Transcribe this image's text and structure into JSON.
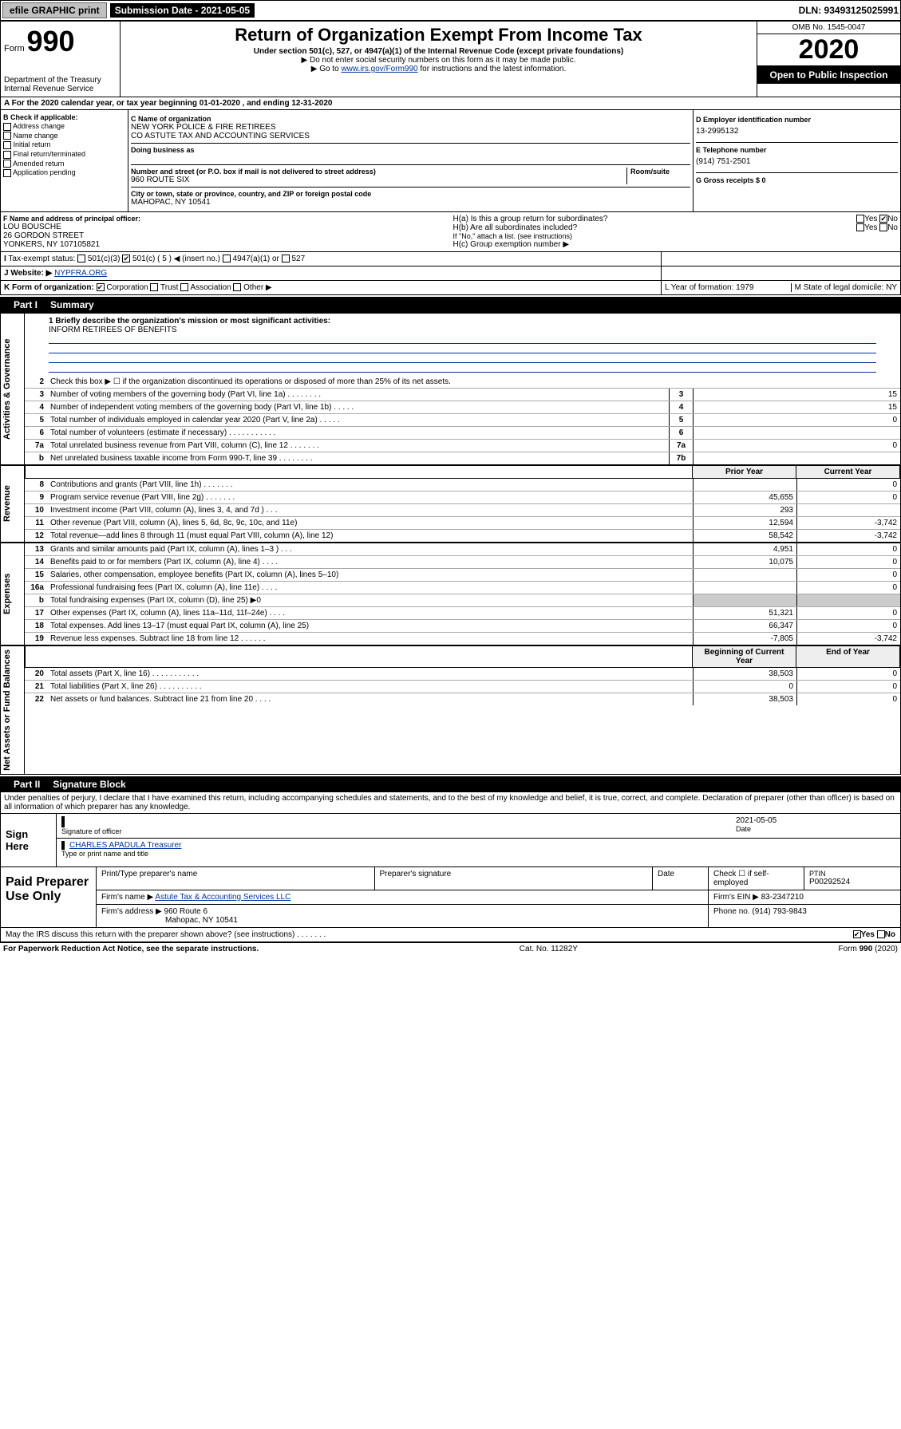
{
  "topbar": {
    "efile": "efile GRAPHIC print",
    "submission_label": "Submission Date - 2021-05-05",
    "dln": "DLN: 93493125025991"
  },
  "header": {
    "form_word": "Form",
    "form_num": "990",
    "dept": "Department of the Treasury\nInternal Revenue Service",
    "title": "Return of Organization Exempt From Income Tax",
    "subtitle": "Under section 501(c), 527, or 4947(a)(1) of the Internal Revenue Code (except private foundations)",
    "hint1": "▶ Do not enter social security numbers on this form as it may be made public.",
    "hint2_pre": "▶ Go to ",
    "hint2_link": "www.irs.gov/Form990",
    "hint2_post": " for instructions and the latest information.",
    "omb": "OMB No. 1545-0047",
    "year": "2020",
    "otp": "Open to Public Inspection"
  },
  "rowA": "For the 2020 calendar year, or tax year beginning 01-01-2020   , and ending 12-31-2020",
  "colB": {
    "title": "B Check if applicable:",
    "opts": [
      "Address change",
      "Name change",
      "Initial return",
      "Final return/terminated",
      "Amended return",
      "Application pending"
    ]
  },
  "colC": {
    "name_lbl": "C Name of organization",
    "name1": "NEW YORK POLICE & FIRE RETIREES",
    "name2": "CO ASTUTE TAX AND ACCOUNTING SERVICES",
    "dba_lbl": "Doing business as",
    "addr_lbl": "Number and street (or P.O. box if mail is not delivered to street address)",
    "suite_lbl": "Room/suite",
    "addr": "960 ROUTE SIX",
    "city_lbl": "City or town, state or province, country, and ZIP or foreign postal code",
    "city": "MAHOPAC, NY  10541"
  },
  "colD": {
    "ein_lbl": "D Employer identification number",
    "ein": "13-2995132",
    "tel_lbl": "E Telephone number",
    "tel": "(914) 751-2501",
    "gross_lbl": "G Gross receipts $ 0"
  },
  "rowF": {
    "lbl": "F  Name and address of principal officer:",
    "l1": "LOU BOUSCHE",
    "l2": "26 GORDON STREET",
    "l3": "YONKERS, NY  107105821"
  },
  "rowH": {
    "ha": "H(a)  Is this a group return for subordinates?",
    "ha_ans": "No",
    "hb": "H(b)  Are all subordinates included?",
    "hb_hint": "If \"No,\" attach a list. (see instructions)",
    "hc": "H(c)  Group exemption number ▶"
  },
  "rowI": {
    "lbl": "Tax-exempt status:",
    "c1": "501(c)(3)",
    "c2_pre": "501(c) ( 5 ) ◀ (insert no.)",
    "c3": "4947(a)(1) or",
    "c4": "527"
  },
  "rowJ": {
    "lbl": "Website: ▶",
    "val": "NYPFRA.ORG"
  },
  "rowK": {
    "lbl": "K Form of organization:",
    "opts": [
      "Corporation",
      "Trust",
      "Association",
      "Other ▶"
    ],
    "L": "L Year of formation: 1979",
    "M": "M State of legal domicile: NY"
  },
  "part1": {
    "tab": "Part I",
    "title": "Summary"
  },
  "mission": {
    "q": "1  Briefly describe the organization's mission or most significant activities:",
    "a": "INFORM RETIREES OF BENEFITS"
  },
  "sidelabels": {
    "gov": "Activities & Governance",
    "rev": "Revenue",
    "exp": "Expenses",
    "net": "Net Assets or Fund Balances"
  },
  "govRows": [
    {
      "n": "2",
      "t": "Check this box ▶ ☐  if the organization discontinued its operations or disposed of more than 25% of its net assets."
    },
    {
      "n": "3",
      "t": "Number of voting members of the governing body (Part VI, line 1a)  .   .   .   .   .   .   .   .",
      "bn": "3",
      "v": "15"
    },
    {
      "n": "4",
      "t": "Number of independent voting members of the governing body (Part VI, line 1b)  .   .   .   .   .",
      "bn": "4",
      "v": "15"
    },
    {
      "n": "5",
      "t": "Total number of individuals employed in calendar year 2020 (Part V, line 2a)   .   .   .   .   .",
      "bn": "5",
      "v": "0"
    },
    {
      "n": "6",
      "t": "Total number of volunteers (estimate if necessary)  .   .   .   .   .   .   .   .   .   .   .",
      "bn": "6",
      "v": ""
    },
    {
      "n": "7a",
      "t": "Total unrelated business revenue from Part VIII, column (C), line 12   .   .   .   .   .   .   .",
      "bn": "7a",
      "v": "0"
    },
    {
      "n": "b",
      "t": "Net unrelated business taxable income from Form 990-T, line 39   .   .   .   .   .   .   .   .",
      "bn": "7b",
      "v": ""
    }
  ],
  "colHdr": {
    "prior": "Prior Year",
    "curr": "Current Year"
  },
  "revRows": [
    {
      "n": "8",
      "t": "Contributions and grants (Part VIII, line 1h)   .   .   .   .   .   .   .",
      "p": "",
      "c": "0"
    },
    {
      "n": "9",
      "t": "Program service revenue (Part VIII, line 2g)   .   .   .   .   .   .   .",
      "p": "45,655",
      "c": "0"
    },
    {
      "n": "10",
      "t": "Investment income (Part VIII, column (A), lines 3, 4, and 7d )   .   .   .",
      "p": "293",
      "c": ""
    },
    {
      "n": "11",
      "t": "Other revenue (Part VIII, column (A), lines 5, 6d, 8c, 9c, 10c, and 11e)",
      "p": "12,594",
      "c": "-3,742"
    },
    {
      "n": "12",
      "t": "Total revenue—add lines 8 through 11 (must equal Part VIII, column (A), line 12)",
      "p": "58,542",
      "c": "-3,742"
    }
  ],
  "expRows": [
    {
      "n": "13",
      "t": "Grants and similar amounts paid (Part IX, column (A), lines 1–3 )   .   .   .",
      "p": "4,951",
      "c": "0"
    },
    {
      "n": "14",
      "t": "Benefits paid to or for members (Part IX, column (A), line 4)   .   .   .   .",
      "p": "10,075",
      "c": "0"
    },
    {
      "n": "15",
      "t": "Salaries, other compensation, employee benefits (Part IX, column (A), lines 5–10)",
      "p": "",
      "c": "0"
    },
    {
      "n": "16a",
      "t": "Professional fundraising fees (Part IX, column (A), line 11e)   .   .   .   .",
      "p": "",
      "c": "0"
    },
    {
      "n": "b",
      "t": "Total fundraising expenses (Part IX, column (D), line 25) ▶0",
      "p": "",
      "c": "",
      "shade": true
    },
    {
      "n": "17",
      "t": "Other expenses (Part IX, column (A), lines 11a–11d, 11f–24e)   .   .   .   .",
      "p": "51,321",
      "c": "0"
    },
    {
      "n": "18",
      "t": "Total expenses. Add lines 13–17 (must equal Part IX, column (A), line 25)",
      "p": "66,347",
      "c": "0"
    },
    {
      "n": "19",
      "t": "Revenue less expenses. Subtract line 18 from line 12   .   .   .   .   .   .",
      "p": "-7,805",
      "c": "-3,742"
    }
  ],
  "colHdr2": {
    "prior": "Beginning of Current Year",
    "curr": "End of Year"
  },
  "netRows": [
    {
      "n": "20",
      "t": "Total assets (Part X, line 16)   .   .   .   .   .   .   .   .   .   .   .",
      "p": "38,503",
      "c": "0"
    },
    {
      "n": "21",
      "t": "Total liabilities (Part X, line 26)   .   .   .   .   .   .   .   .   .   .",
      "p": "0",
      "c": "0"
    },
    {
      "n": "22",
      "t": "Net assets or fund balances. Subtract line 21 from line 20   .   .   .   .",
      "p": "38,503",
      "c": "0"
    }
  ],
  "part2": {
    "tab": "Part II",
    "title": "Signature Block"
  },
  "decl": "Under penalties of perjury, I declare that I have examined this return, including accompanying schedules and statements, and to the best of my knowledge and belief, it is true, correct, and complete. Declaration of preparer (other than officer) is based on all information of which preparer has any knowledge.",
  "sign": {
    "side": "Sign Here",
    "sig_lbl": "Signature of officer",
    "date": "2021-05-05",
    "date_lbl": "Date",
    "name": "CHARLES APADULA  Treasurer",
    "name_lbl": "Type or print name and title"
  },
  "paid": {
    "side": "Paid Preparer Use Only",
    "h1": "Print/Type preparer's name",
    "h2": "Preparer's signature",
    "h3": "Date",
    "h4_lbl": "Check ☐ if self-employed",
    "h5_lbl": "PTIN",
    "ptin": "P00292524",
    "firm_name_lbl": "Firm's name    ▶",
    "firm_name": "Astute Tax & Accounting Services LLC",
    "firm_ein_lbl": "Firm's EIN ▶",
    "firm_ein": "83-2347210",
    "firm_addr_lbl": "Firm's address ▶",
    "firm_addr1": "960 Route 6",
    "firm_addr2": "Mahopac, NY  10541",
    "phone_lbl": "Phone no.",
    "phone": "(914) 793-9843"
  },
  "discuss": {
    "q": "May the IRS discuss this return with the preparer shown above? (see instructions)    .    .    .    .    .    .    .",
    "yes": "Yes",
    "no": "No"
  },
  "footer": {
    "l": "For Paperwork Reduction Act Notice, see the separate instructions.",
    "c": "Cat. No. 11282Y",
    "r": "Form 990 (2020)"
  }
}
